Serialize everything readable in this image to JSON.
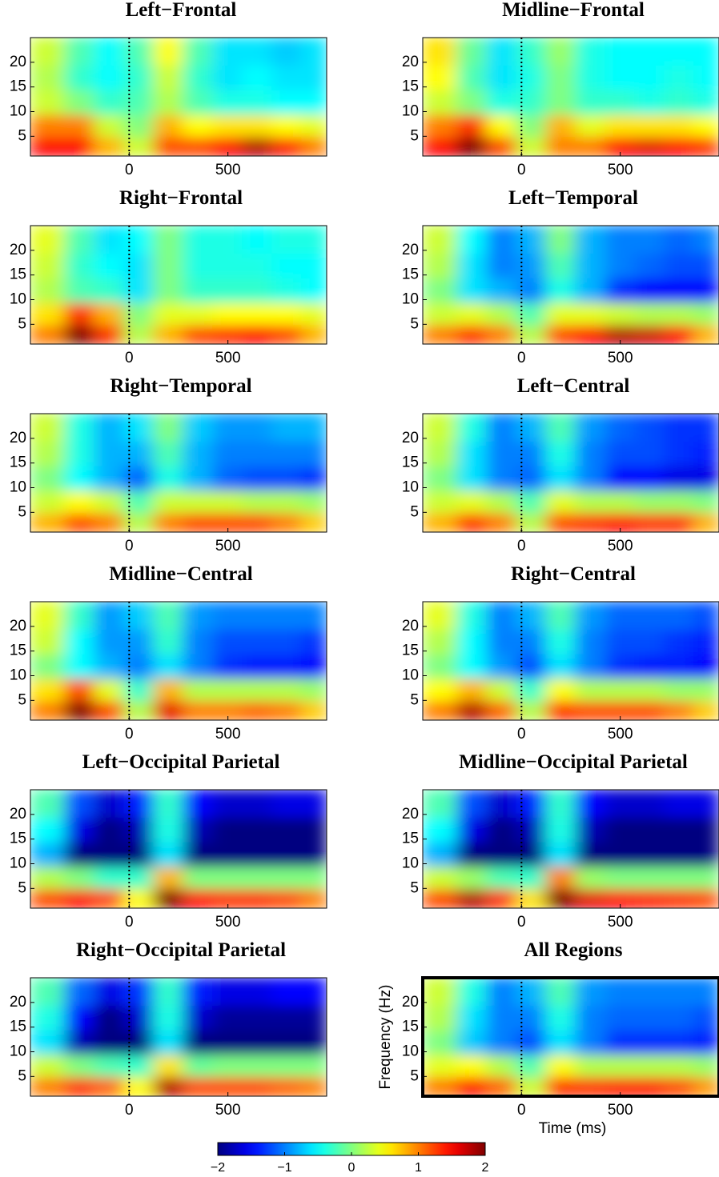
{
  "chart_data": {
    "type": "heatmap",
    "x": [
      -400,
      -250,
      -100,
      50,
      200,
      350,
      500,
      650,
      800,
      950
    ],
    "y": [
      3,
      7,
      12,
      17,
      22
    ],
    "xlim": [
      -500,
      1000
    ],
    "ylim": [
      1,
      25
    ],
    "xticks": [
      0,
      500
    ],
    "yticks": [
      5,
      10,
      15,
      20
    ],
    "clim": [
      -2,
      2
    ],
    "cticks": [
      {
        "value": -2,
        "label": "−2"
      },
      {
        "value": -1,
        "label": "−1"
      },
      0,
      1,
      2
    ],
    "xlabel": "Time (ms)",
    "ylabel": "Frequency (Hz)",
    "panels": [
      {
        "title": "Left−Frontal",
        "z": [
          [
            1.5,
            1.5,
            0.8,
            0.3,
            1.2,
            1.2,
            1.5,
            1.8,
            1.4,
            1.0
          ],
          [
            1.0,
            1.0,
            0.3,
            0,
            0.8,
            0.5,
            0.6,
            0.6,
            0.5,
            0.4
          ],
          [
            0.3,
            0,
            -0.3,
            -0.2,
            0.2,
            -0.2,
            -0.4,
            -0.4,
            -0.5,
            -0.5
          ],
          [
            0.2,
            -0.3,
            -0.5,
            -0.3,
            0.3,
            -0.3,
            -0.6,
            -0.5,
            -0.6,
            -0.6
          ],
          [
            0.3,
            -0.2,
            -0.5,
            -0.2,
            0.5,
            -0.2,
            -0.6,
            -0.6,
            -0.7,
            -0.6
          ]
        ]
      },
      {
        "title": "Midline−Frontal",
        "z": [
          [
            1.5,
            2.0,
            1.2,
            0.3,
            1.0,
            1.0,
            1.5,
            1.6,
            1.5,
            1.3
          ],
          [
            1.0,
            1.3,
            0.5,
            0,
            0.8,
            0.4,
            0.6,
            0.6,
            0.6,
            0.5
          ],
          [
            0.3,
            0,
            -0.4,
            -0.3,
            0,
            -0.3,
            -0.3,
            -0.4,
            -0.3,
            -0.4
          ],
          [
            0.5,
            -0.2,
            -0.6,
            -0.4,
            0,
            -0.4,
            -0.5,
            -0.5,
            -0.4,
            -0.5
          ],
          [
            0.6,
            -0.1,
            -0.6,
            -0.3,
            0.1,
            -0.4,
            -0.5,
            -0.5,
            -0.5,
            -0.5
          ]
        ]
      },
      {
        "title": "Right−Frontal",
        "z": [
          [
            1.0,
            2.0,
            1.3,
            0.2,
            0.8,
            1.2,
            1.3,
            1.5,
            1.2,
            0.8
          ],
          [
            0.6,
            1.3,
            0.8,
            0,
            0.4,
            0.4,
            0.5,
            0.5,
            0.5,
            0.4
          ],
          [
            0.2,
            -0.2,
            -0.3,
            -0.6,
            0,
            -0.3,
            -0.3,
            -0.3,
            -0.4,
            -0.5
          ],
          [
            0.3,
            -0.3,
            -0.5,
            -0.6,
            0,
            -0.4,
            -0.4,
            -0.4,
            -0.5,
            -0.5
          ],
          [
            0.4,
            -0.2,
            -0.6,
            -0.5,
            0,
            -0.4,
            -0.4,
            -0.5,
            -0.4,
            -0.4
          ]
        ]
      },
      {
        "title": "Left−Temporal",
        "z": [
          [
            1.0,
            1.3,
            1.0,
            0.2,
            1.2,
            1.5,
            1.8,
            1.7,
            1.5,
            0.8
          ],
          [
            0.3,
            0.4,
            0.2,
            -0.2,
            0.4,
            0.4,
            0.3,
            0.2,
            0.2,
            0.1
          ],
          [
            0,
            -0.6,
            -0.8,
            -1.0,
            -0.4,
            -0.8,
            -1.3,
            -1.5,
            -1.5,
            -1.5
          ],
          [
            0.2,
            -0.6,
            -1.0,
            -0.9,
            -0.2,
            -0.8,
            -1.0,
            -1.1,
            -1.2,
            -1.2
          ],
          [
            0.3,
            -0.5,
            -1.0,
            -0.8,
            0,
            -0.8,
            -1.0,
            -1.0,
            -1.1,
            -1.0
          ]
        ]
      },
      {
        "title": "Right−Temporal",
        "z": [
          [
            0.8,
            1.2,
            1.0,
            0.2,
            1.0,
            1.2,
            1.2,
            1.2,
            1.0,
            0.7
          ],
          [
            0.3,
            0.5,
            0.3,
            -0.2,
            0.3,
            0.3,
            0.3,
            0.2,
            0.2,
            0.1
          ],
          [
            0,
            -0.5,
            -0.8,
            -1.1,
            -0.4,
            -0.8,
            -1.1,
            -1.2,
            -1.2,
            -1.3
          ],
          [
            0.2,
            -0.4,
            -0.8,
            -0.8,
            -0.2,
            -0.8,
            -1.0,
            -1.0,
            -1.0,
            -1.0
          ],
          [
            0.3,
            -0.4,
            -0.8,
            -0.6,
            0,
            -0.7,
            -0.9,
            -0.9,
            -0.8,
            -0.8
          ]
        ]
      },
      {
        "title": "Left−Central",
        "z": [
          [
            0.8,
            1.3,
            1.0,
            0.2,
            1.2,
            1.3,
            1.5,
            1.3,
            1.3,
            0.8
          ],
          [
            0.3,
            0.4,
            0.2,
            -0.2,
            0.4,
            0.2,
            0.2,
            0.1,
            0.1,
            0
          ],
          [
            0,
            -0.6,
            -1.0,
            -1.1,
            -0.6,
            -1.0,
            -1.5,
            -1.5,
            -1.6,
            -1.6
          ],
          [
            0.2,
            -0.6,
            -1.0,
            -1.0,
            -0.4,
            -1.0,
            -1.2,
            -1.2,
            -1.3,
            -1.4
          ],
          [
            0.3,
            -0.4,
            -1.0,
            -0.8,
            -0.2,
            -0.9,
            -1.1,
            -1.2,
            -1.3,
            -1.3
          ]
        ]
      },
      {
        "title": "Midline−Central",
        "z": [
          [
            1.0,
            2.0,
            1.2,
            0.2,
            1.6,
            1.0,
            1.0,
            1.1,
            1.0,
            0.7
          ],
          [
            0.6,
            1.2,
            0.4,
            -0.3,
            0.8,
            0.2,
            0.2,
            0.2,
            0.2,
            0.1
          ],
          [
            0,
            -0.5,
            -0.8,
            -1.0,
            -0.6,
            -1.0,
            -1.3,
            -1.4,
            -1.4,
            -1.5
          ],
          [
            0.3,
            -0.5,
            -0.9,
            -0.9,
            -0.3,
            -1.0,
            -1.2,
            -1.2,
            -1.2,
            -1.3
          ],
          [
            0.4,
            -0.3,
            -0.9,
            -0.7,
            -0.2,
            -0.9,
            -1.0,
            -1.0,
            -1.0,
            -1.0
          ]
        ]
      },
      {
        "title": "Right−Central",
        "z": [
          [
            1.0,
            1.8,
            1.1,
            0.2,
            1.3,
            1.2,
            1.2,
            1.2,
            1.0,
            0.7
          ],
          [
            0.5,
            0.8,
            0.3,
            -0.3,
            0.5,
            0.2,
            0.2,
            0.2,
            0.1,
            0.1
          ],
          [
            0,
            -0.5,
            -0.9,
            -1.2,
            -0.6,
            -1.0,
            -1.3,
            -1.4,
            -1.4,
            -1.5
          ],
          [
            0.2,
            -0.5,
            -1.0,
            -1.0,
            -0.4,
            -1.0,
            -1.2,
            -1.2,
            -1.3,
            -1.4
          ],
          [
            0.4,
            -0.4,
            -1.0,
            -0.8,
            -0.2,
            -0.9,
            -1.1,
            -1.1,
            -1.1,
            -1.2
          ]
        ]
      },
      {
        "title": "Left−Occipital Parietal",
        "z": [
          [
            1.2,
            1.5,
            1.2,
            0.5,
            2.0,
            1.5,
            1.3,
            1.3,
            1.2,
            1.0
          ],
          [
            0.2,
            0,
            -0.3,
            -0.3,
            0.8,
            0,
            0,
            0,
            0,
            0
          ],
          [
            -0.8,
            -2,
            -2,
            -2,
            -0.6,
            -2,
            -2,
            -2,
            -2,
            -2
          ],
          [
            -0.5,
            -1.6,
            -2,
            -1.8,
            -0.4,
            -1.8,
            -2,
            -2,
            -2,
            -2
          ],
          [
            -0.2,
            -1.2,
            -1.7,
            -1.4,
            -0.3,
            -1.5,
            -1.7,
            -1.7,
            -1.6,
            -1.6
          ]
        ]
      },
      {
        "title": "Midline−Occipital Parietal",
        "z": [
          [
            1.2,
            1.8,
            1.3,
            0.6,
            2.2,
            1.6,
            1.5,
            1.4,
            1.3,
            1.2
          ],
          [
            0.3,
            0.1,
            -0.2,
            -0.3,
            1.0,
            0.1,
            0,
            0,
            0,
            0
          ],
          [
            -0.8,
            -2,
            -2,
            -2,
            -0.6,
            -2,
            -2,
            -2,
            -2,
            -2
          ],
          [
            -0.5,
            -1.6,
            -2,
            -1.8,
            -0.4,
            -1.8,
            -2,
            -2,
            -2,
            -2
          ],
          [
            -0.2,
            -1.2,
            -1.7,
            -1.4,
            -0.3,
            -1.5,
            -1.7,
            -1.7,
            -1.6,
            -1.6
          ]
        ]
      },
      {
        "title": "Right−Occipital Parietal",
        "z": [
          [
            1.0,
            1.3,
            1.1,
            0.5,
            1.8,
            1.2,
            1.2,
            1.2,
            1.1,
            1.0
          ],
          [
            0.3,
            0,
            -0.2,
            -0.3,
            0.6,
            -0.1,
            0,
            0,
            0,
            0
          ],
          [
            -0.6,
            -1.8,
            -2,
            -2,
            -0.6,
            -2,
            -2,
            -2,
            -2,
            -2
          ],
          [
            -0.4,
            -1.5,
            -2,
            -1.7,
            -0.4,
            -1.7,
            -1.9,
            -1.9,
            -1.9,
            -1.9
          ],
          [
            -0.2,
            -1.1,
            -1.6,
            -1.3,
            -0.3,
            -1.4,
            -1.6,
            -1.6,
            -1.5,
            -1.5
          ]
        ]
      },
      {
        "title": "All Regions",
        "z": [
          [
            1.0,
            1.5,
            1.1,
            0.3,
            1.3,
            1.3,
            1.4,
            1.4,
            1.2,
            0.9
          ],
          [
            0.4,
            0.5,
            0.2,
            -0.2,
            0.5,
            0.2,
            0.2,
            0.2,
            0.2,
            0.1
          ],
          [
            0,
            -0.7,
            -1.0,
            -1.2,
            -0.6,
            -1.0,
            -1.3,
            -1.3,
            -1.3,
            -1.4
          ],
          [
            0.2,
            -0.6,
            -1.0,
            -1.0,
            -0.4,
            -1.0,
            -1.1,
            -1.1,
            -1.1,
            -1.2
          ],
          [
            0.3,
            -0.4,
            -1.0,
            -0.8,
            -0.2,
            -0.9,
            -1.0,
            -1.0,
            -1.0,
            -1.0
          ]
        ]
      }
    ]
  }
}
